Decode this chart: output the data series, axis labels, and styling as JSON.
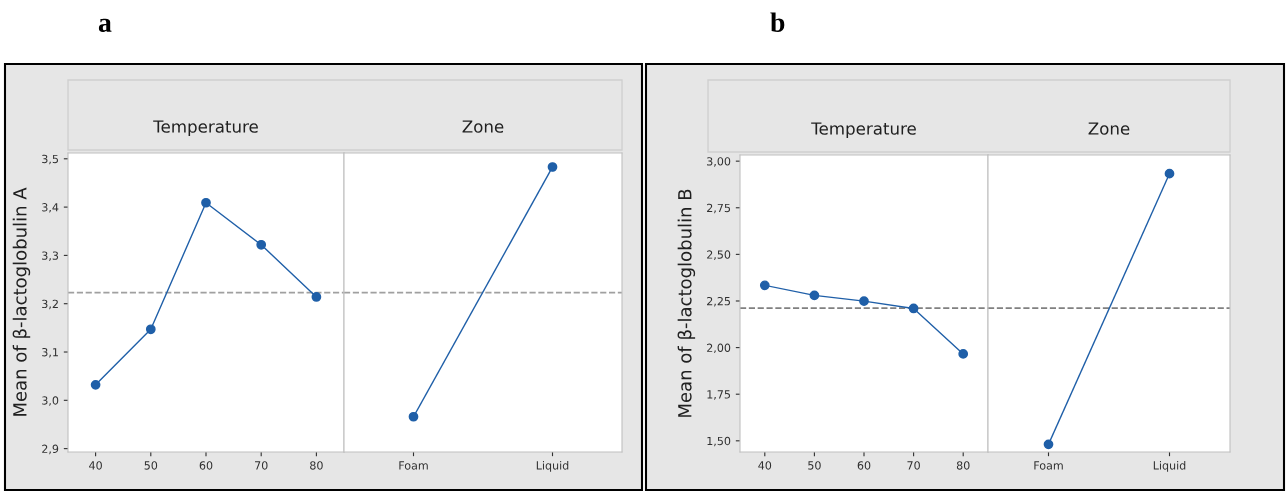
{
  "chart_data": [
    {
      "type": "line",
      "title": "a",
      "subtitle": "Temperature",
      "ylabel": "Mean of β-lactoglobulin A",
      "x": [
        40,
        50,
        60,
        70,
        80
      ],
      "xlim": [
        35,
        85
      ],
      "xticks": [
        40,
        50,
        60,
        70,
        80
      ],
      "ylim": [
        2.893,
        3.512
      ],
      "yticks": [
        {
          "value": 2.9,
          "label": "2,9"
        },
        {
          "value": 3.0,
          "label": "3,0"
        },
        {
          "value": 3.1,
          "label": "3,1"
        },
        {
          "value": 3.2,
          "label": "3,2"
        },
        {
          "value": 3.3,
          "label": "3,3"
        },
        {
          "value": 3.4,
          "label": "3,4"
        },
        {
          "value": 3.5,
          "label": "3,5"
        }
      ],
      "marker": "circle",
      "grid": false,
      "legend": false,
      "series": [
        {
          "color": "#1f5fa8",
          "values": [
            3.032,
            3.147,
            3.409,
            3.322,
            3.214
          ]
        }
      ],
      "ref_lines": [
        {
          "axis": "y",
          "value": 3.223,
          "color": "#a0a0a0",
          "line_style": "dashed"
        }
      ]
    },
    {
      "type": "line",
      "subtitle": "Zone",
      "categories": [
        "Foam",
        "Liquid"
      ],
      "ylim": [
        2.893,
        3.512
      ],
      "tick_labels": "x",
      "marker": "circle",
      "grid": false,
      "legend": false,
      "series": [
        {
          "color": "#1f5fa8",
          "values": [
            2.966,
            3.483
          ]
        }
      ],
      "ref_lines": [
        {
          "axis": "y",
          "value": 3.223,
          "color": "#a0a0a0",
          "line_style": "dashed"
        }
      ]
    },
    {
      "type": "line",
      "title": "b",
      "subtitle": "Temperature",
      "ylabel": "Mean of β-lactoglobulin B",
      "x": [
        40,
        50,
        60,
        70,
        80
      ],
      "xlim": [
        35,
        85
      ],
      "xticks": [
        40,
        50,
        60,
        70,
        80
      ],
      "ylim": [
        1.44,
        3.033
      ],
      "yticks": [
        {
          "value": 1.5,
          "label": "1,50"
        },
        {
          "value": 1.75,
          "label": "1,75"
        },
        {
          "value": 2.0,
          "label": "2,00"
        },
        {
          "value": 2.25,
          "label": "2,25"
        },
        {
          "value": 2.5,
          "label": "2,50"
        },
        {
          "value": 2.75,
          "label": "2,75"
        },
        {
          "value": 3.0,
          "label": "3,00"
        }
      ],
      "marker": "circle",
      "grid": false,
      "legend": false,
      "series": [
        {
          "color": "#1f5fa8",
          "values": [
            2.334,
            2.28,
            2.249,
            2.21,
            1.966
          ]
        }
      ],
      "ref_lines": [
        {
          "axis": "y",
          "value": 2.212,
          "color": "#808080",
          "line_style": "dashed"
        }
      ]
    },
    {
      "type": "line",
      "subtitle": "Zone",
      "categories": [
        "Foam",
        "Liquid"
      ],
      "ylim": [
        1.44,
        3.033
      ],
      "tick_labels": "x",
      "marker": "circle",
      "grid": false,
      "legend": false,
      "series": [
        {
          "color": "#1f5fa8",
          "values": [
            1.481,
            2.933
          ]
        }
      ],
      "ref_lines": [
        {
          "axis": "y",
          "value": 2.212,
          "color": "#808080",
          "line_style": "dashed"
        }
      ]
    }
  ]
}
